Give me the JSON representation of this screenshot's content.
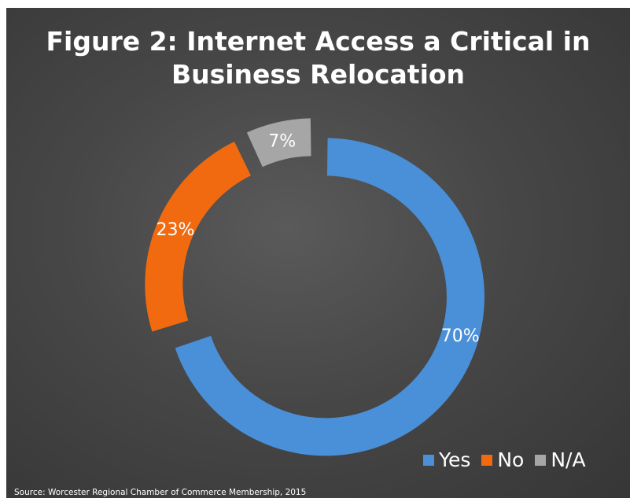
{
  "chart_data": {
    "type": "pie",
    "style": "doughnut with exploded segments",
    "title": "Figure 2: Internet Access a Critical in Business Relocation",
    "title_lines": [
      "Figure 2: Internet Access a Critical in",
      "Business Relocation"
    ],
    "categories": [
      "Yes",
      "No",
      "N/A"
    ],
    "values": [
      70,
      23,
      7
    ],
    "data_labels": [
      "70%",
      "23%",
      "7%"
    ],
    "colors": [
      "#4a90d9",
      "#f26a10",
      "#a6a6a6"
    ],
    "legend_position": "bottom-right",
    "source": "Source: Worcester Regional Chamber of Commerce Membership, 2015"
  }
}
